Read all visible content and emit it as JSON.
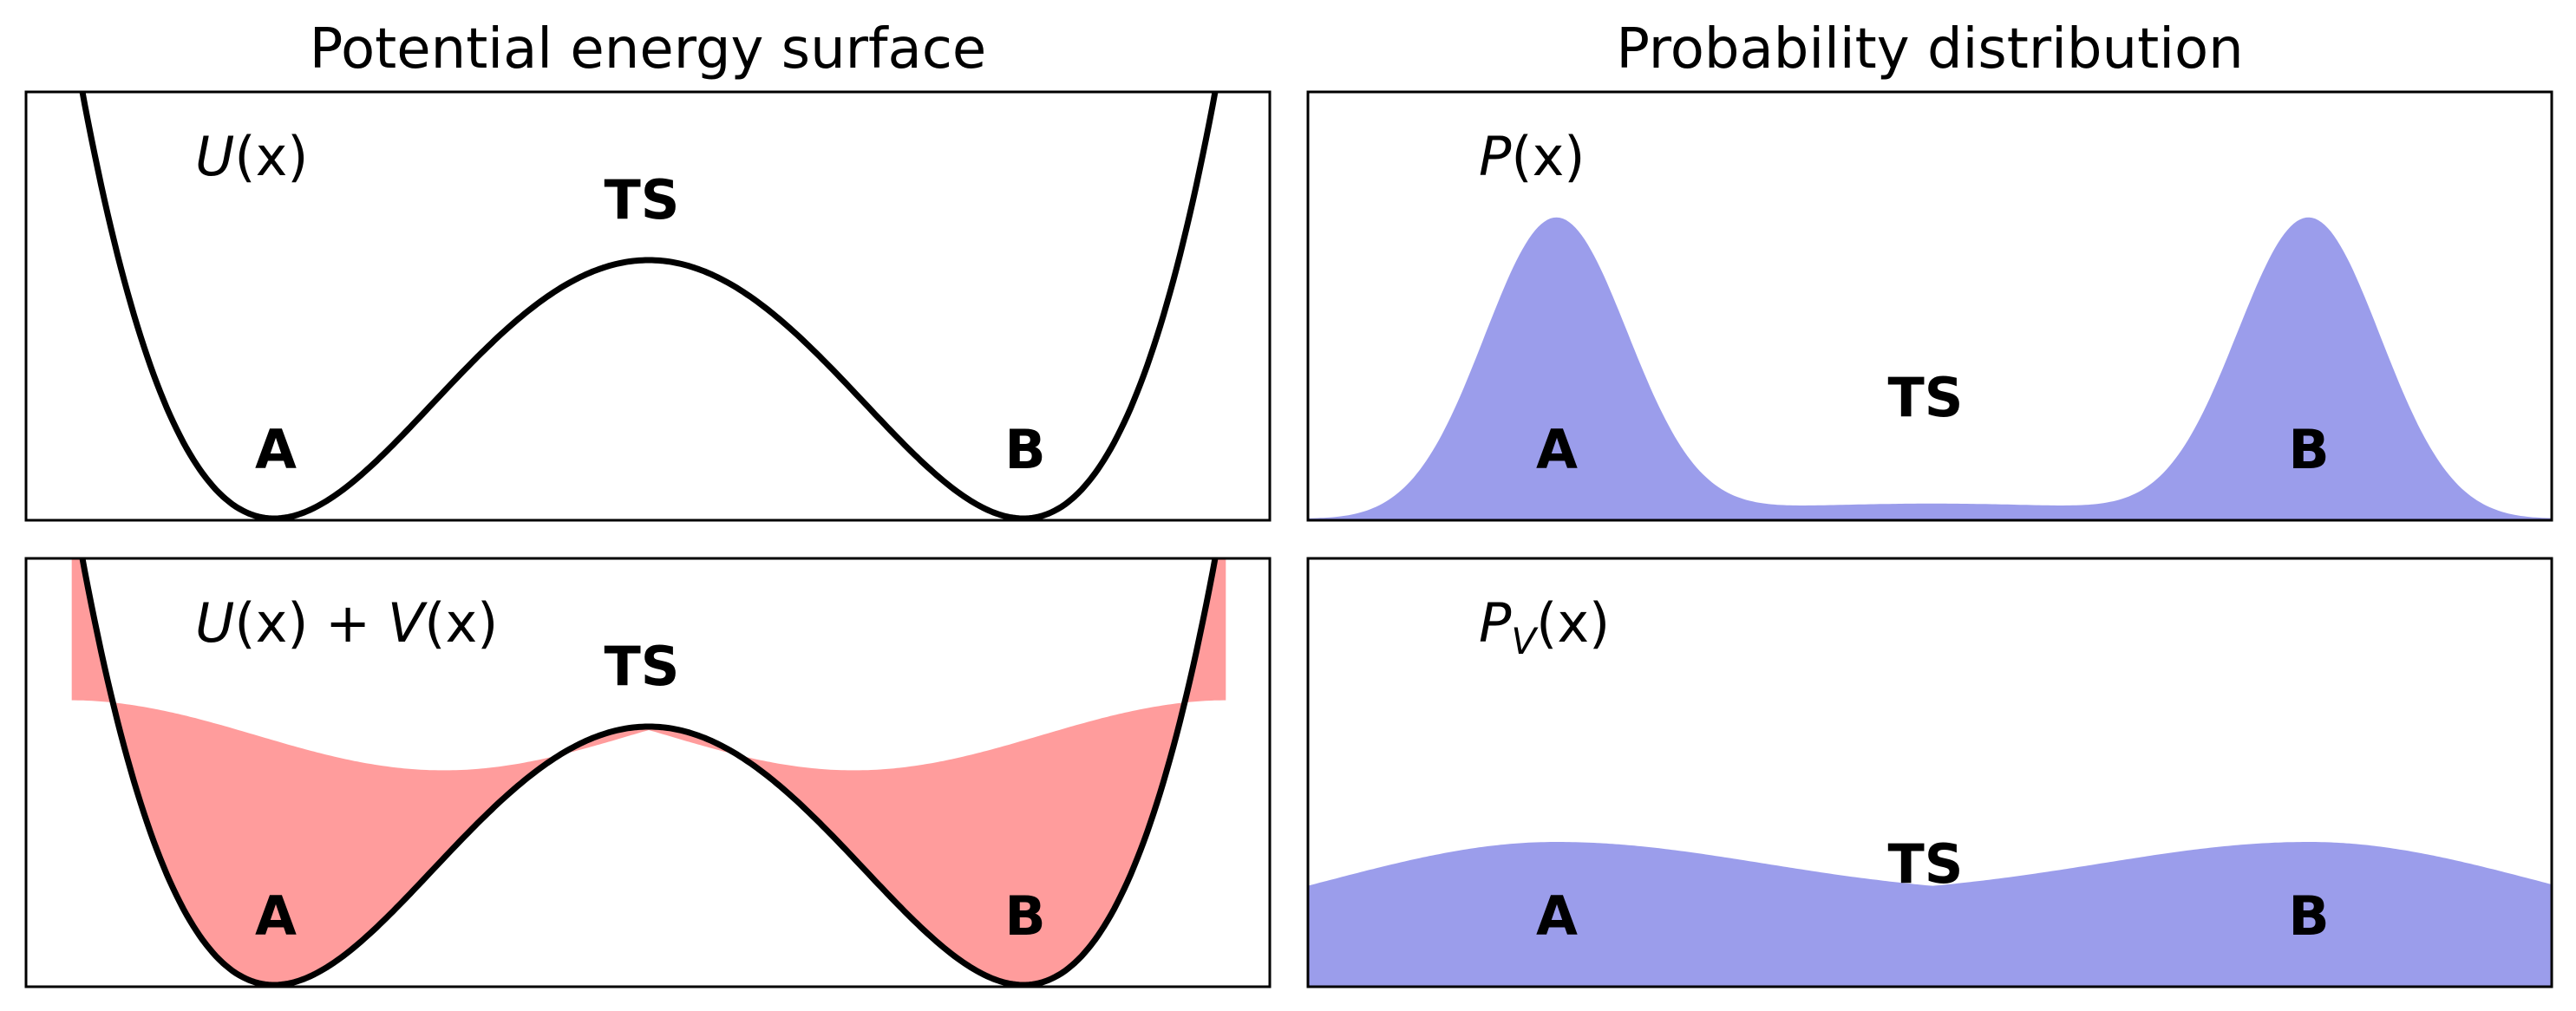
{
  "titles": {
    "left": "Potential energy surface",
    "right": "Probability distribution"
  },
  "panels": {
    "top_left": {
      "function_label": {
        "u": "U",
        "rest": "(x)"
      },
      "labels": {
        "a": "A",
        "ts": "TS",
        "b": "B"
      }
    },
    "bottom_left": {
      "function_label": {
        "u": "U",
        "mid": "(x) + ",
        "v": "V",
        "rest": "(x)"
      },
      "labels": {
        "a": "A",
        "ts": "TS",
        "b": "B"
      }
    },
    "top_right": {
      "function_label": {
        "p": "P",
        "rest": "(x)"
      },
      "labels": {
        "a": "A",
        "ts": "TS",
        "b": "B"
      }
    },
    "bottom_right": {
      "function_label": {
        "p": "P",
        "sub": "V",
        "rest": "(x)"
      },
      "labels": {
        "a": "A",
        "ts": "TS",
        "b": "B"
      }
    }
  },
  "colors": {
    "distribution_fill": "#9b9deb",
    "bias_fill": "#ff9c9c",
    "curve": "#000000"
  }
}
